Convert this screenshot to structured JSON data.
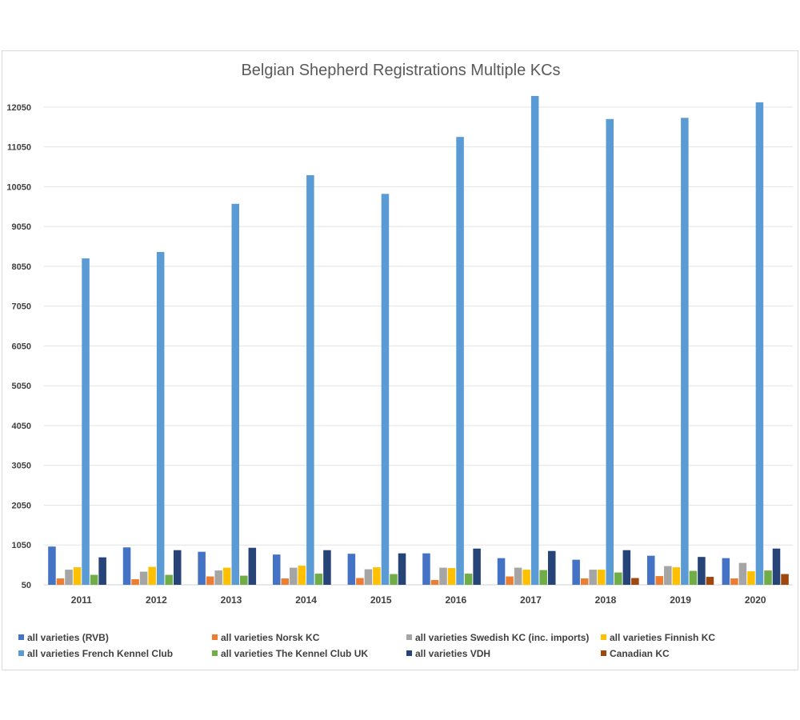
{
  "chart_data": {
    "type": "bar",
    "title": "Belgian Shepherd Registrations Multiple KCs",
    "xlabel": "",
    "ylabel": "",
    "ylim": [
      50,
      12650
    ],
    "yticks": [
      50,
      1050,
      2050,
      3050,
      4050,
      5050,
      6050,
      7050,
      8050,
      9050,
      10050,
      11050,
      12050
    ],
    "grid": true,
    "legend_position": "bottom",
    "categories": [
      "2011",
      "2012",
      "2013",
      "2014",
      "2015",
      "2016",
      "2017",
      "2018",
      "2019",
      "2020"
    ],
    "series": [
      {
        "name": "all varieties (RVB)",
        "color": "#4472C4",
        "values": [
          1010,
          990,
          880,
          810,
          830,
          840,
          720,
          680,
          780,
          720
        ]
      },
      {
        "name": "all varieties Norsk KC",
        "color": "#ED7D31",
        "values": [
          210,
          190,
          260,
          210,
          220,
          170,
          260,
          210,
          270,
          210
        ]
      },
      {
        "name": "all varieties Swedish KC (inc. imports)",
        "color": "#A5A5A5",
        "values": [
          430,
          380,
          410,
          480,
          440,
          480,
          480,
          430,
          520,
          600
        ]
      },
      {
        "name": "all varieties Finnish KC",
        "color": "#FFC000",
        "values": [
          490,
          500,
          480,
          530,
          490,
          470,
          430,
          430,
          490,
          390
        ]
      },
      {
        "name": "all varieties French Kennel Club",
        "color": "#5B9BD5",
        "values": [
          8250,
          8410,
          9620,
          10340,
          9870,
          11300,
          12330,
          11750,
          11780,
          12170
        ]
      },
      {
        "name": "all varieties The Kennel Club UK",
        "color": "#70AD47",
        "values": [
          300,
          300,
          280,
          330,
          320,
          330,
          420,
          360,
          400,
          410
        ]
      },
      {
        "name": "all varieties VDH",
        "color": "#264478",
        "values": [
          740,
          920,
          980,
          920,
          840,
          960,
          900,
          920,
          750,
          960
        ]
      },
      {
        "name": "Canadian KC",
        "color": "#9E480E",
        "values": [
          null,
          null,
          null,
          null,
          null,
          null,
          null,
          220,
          250,
          320
        ]
      }
    ]
  }
}
